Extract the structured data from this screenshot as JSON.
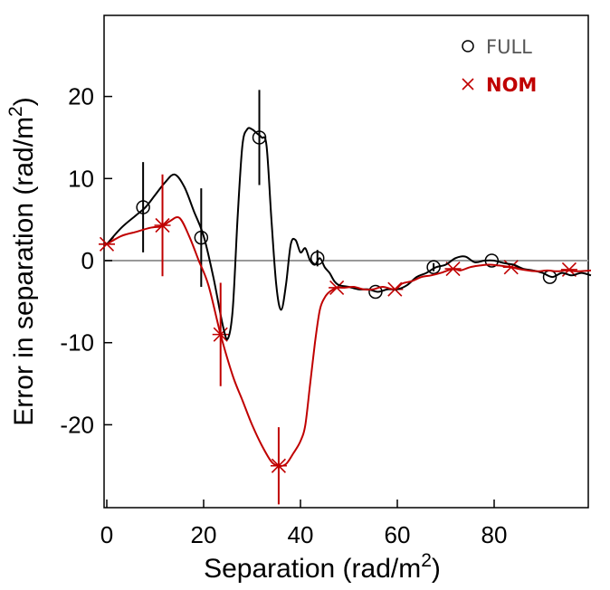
{
  "chart_data": {
    "type": "line",
    "xlabel": "Separation (rad/m",
    "ylabel": "Error in separation (rad/m",
    "label_superscript": "2",
    "xlim": [
      0,
      100
    ],
    "ylim": [
      -30,
      30
    ],
    "xticks": [
      0,
      20,
      40,
      60,
      80
    ],
    "xtick_labels": [
      "0",
      "20",
      "40",
      "60",
      "80"
    ],
    "yticks": [
      -20,
      -10,
      0,
      10,
      20
    ],
    "ytick_labels": [
      "-20",
      "-10",
      "0",
      "10",
      "20"
    ],
    "zero_line": true,
    "grid": false,
    "legend_position": "top-right",
    "series": [
      {
        "name": "FULL",
        "color": "#000000",
        "legend_color": "#555555",
        "marker": "circle",
        "curve": [
          [
            0,
            2
          ],
          [
            3,
            4
          ],
          [
            6,
            5.5
          ],
          [
            8,
            6.5
          ],
          [
            10,
            8
          ],
          [
            12,
            9.5
          ],
          [
            14,
            10.5
          ],
          [
            16,
            9
          ],
          [
            18,
            6
          ],
          [
            20,
            3
          ],
          [
            22,
            -2
          ],
          [
            24,
            -8
          ],
          [
            25,
            -9.5
          ],
          [
            26,
            -6
          ],
          [
            27,
            5
          ],
          [
            28,
            14
          ],
          [
            29,
            16
          ],
          [
            30,
            16
          ],
          [
            31,
            15.5
          ],
          [
            32,
            15
          ],
          [
            33,
            14
          ],
          [
            34,
            5
          ],
          [
            35,
            -3
          ],
          [
            36,
            -6
          ],
          [
            37,
            -3
          ],
          [
            38,
            2
          ],
          [
            39,
            2.5
          ],
          [
            40,
            1
          ],
          [
            41,
            1.5
          ],
          [
            42,
            0
          ],
          [
            43,
            -0.5
          ],
          [
            44,
            0.3
          ],
          [
            45,
            -0.8
          ],
          [
            46,
            -1.5
          ],
          [
            47,
            -2.5
          ],
          [
            48,
            -3
          ],
          [
            50,
            -3.2
          ],
          [
            52,
            -3.5
          ],
          [
            54,
            -3.5
          ],
          [
            56,
            -3.8
          ],
          [
            58,
            -3.5
          ],
          [
            60,
            -3.5
          ],
          [
            62,
            -3
          ],
          [
            64,
            -2
          ],
          [
            66,
            -1.5
          ],
          [
            68,
            -0.8
          ],
          [
            70,
            -0.5
          ],
          [
            72,
            0.3
          ],
          [
            74,
            0.5
          ],
          [
            76,
            -0.2
          ],
          [
            78,
            0
          ],
          [
            80,
            0
          ],
          [
            82,
            -0.3
          ],
          [
            84,
            -0.5
          ],
          [
            86,
            -1
          ],
          [
            88,
            -1.2
          ],
          [
            90,
            -1.5
          ],
          [
            92,
            -2
          ],
          [
            94,
            -1.5
          ],
          [
            96,
            -1.8
          ],
          [
            98,
            -1.5
          ],
          [
            100,
            -1.8
          ]
        ],
        "points": [
          {
            "x": 7.5,
            "y": 6.5,
            "err": 5.5
          },
          {
            "x": 19.5,
            "y": 2.8,
            "err": 6
          },
          {
            "x": 31.5,
            "y": 15,
            "err": 5.8
          },
          {
            "x": 43.5,
            "y": 0.3,
            "err": 1
          },
          {
            "x": 55.5,
            "y": -3.8,
            "err": 0
          },
          {
            "x": 67.5,
            "y": -0.8,
            "err": 0.5
          },
          {
            "x": 79.5,
            "y": 0,
            "err": 0
          },
          {
            "x": 91.5,
            "y": -2,
            "err": 0
          }
        ]
      },
      {
        "name": "NOM",
        "color": "#c00000",
        "legend_color": "#c00000",
        "marker": "asterisk",
        "curve": [
          [
            0,
            2
          ],
          [
            3,
            3
          ],
          [
            6,
            3.5
          ],
          [
            9,
            4
          ],
          [
            11.5,
            4.2
          ],
          [
            13,
            4.8
          ],
          [
            15,
            5.2
          ],
          [
            17,
            3
          ],
          [
            19,
            0
          ],
          [
            21,
            -3
          ],
          [
            23.5,
            -9
          ],
          [
            26,
            -14
          ],
          [
            28,
            -17
          ],
          [
            30,
            -20
          ],
          [
            32,
            -22.5
          ],
          [
            34,
            -24.5
          ],
          [
            35.5,
            -25
          ],
          [
            37,
            -24.8
          ],
          [
            38.5,
            -23.5
          ],
          [
            40,
            -22
          ],
          [
            41,
            -20
          ],
          [
            42,
            -15
          ],
          [
            43,
            -10
          ],
          [
            44,
            -6
          ],
          [
            45,
            -4.5
          ],
          [
            46,
            -3.8
          ],
          [
            47.5,
            -3.3
          ],
          [
            49,
            -3.3
          ],
          [
            51,
            -3.2
          ],
          [
            53,
            -3.5
          ],
          [
            55,
            -3.5
          ],
          [
            57,
            -3.2
          ],
          [
            59.5,
            -3.5
          ],
          [
            61,
            -2.8
          ],
          [
            63,
            -2.5
          ],
          [
            65,
            -2
          ],
          [
            67,
            -1.8
          ],
          [
            69,
            -1.5
          ],
          [
            71.5,
            -1
          ],
          [
            73,
            -1.2
          ],
          [
            75,
            -0.8
          ],
          [
            77,
            -0.6
          ],
          [
            79,
            -0.5
          ],
          [
            81,
            -0.6
          ],
          [
            83.5,
            -0.8
          ],
          [
            85,
            -1
          ],
          [
            87,
            -1.2
          ],
          [
            89,
            -1.3
          ],
          [
            91,
            -1.2
          ],
          [
            93,
            -1.3
          ],
          [
            95,
            -1.2
          ],
          [
            97,
            -1.3
          ],
          [
            100,
            -1.2
          ]
        ],
        "points": [
          {
            "x": 0,
            "y": 2,
            "err": 0
          },
          {
            "x": 11.5,
            "y": 4.3,
            "err": 6.2
          },
          {
            "x": 23.5,
            "y": -9,
            "err": 6.3
          },
          {
            "x": 35.5,
            "y": -25,
            "err": 4.7
          },
          {
            "x": 47.5,
            "y": -3.3,
            "err": 0
          },
          {
            "x": 59.5,
            "y": -3.5,
            "err": 0
          },
          {
            "x": 71.5,
            "y": -1,
            "err": 0
          },
          {
            "x": 83.5,
            "y": -0.8,
            "err": 0
          },
          {
            "x": 95.5,
            "y": -1.1,
            "err": 0
          }
        ]
      }
    ]
  }
}
